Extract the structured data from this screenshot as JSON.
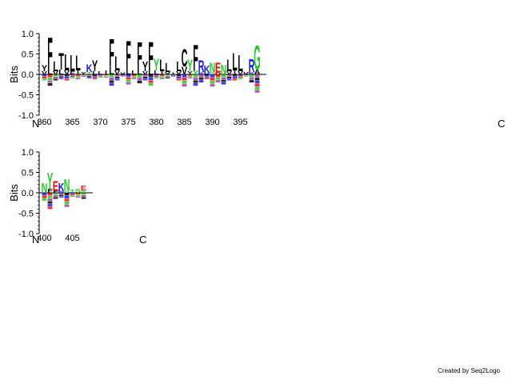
{
  "chart_data": {
    "type": "sequence-logo",
    "colors": {
      "hydrophobic": "#000000",
      "polar": "#22cc22",
      "basic": "#1a1aff",
      "acidic": "#ff0000",
      "neutral": "#a040a0"
    },
    "panels": [
      {
        "ylabel": "Bits",
        "ylim": [
          -1.0,
          1.0
        ],
        "yticks": [
          "-1.0",
          "-0.5",
          "0.0",
          "0.5",
          "1.0"
        ],
        "start_label": "N",
        "end_label": "C",
        "x_ticks": [
          360,
          365,
          370,
          375,
          380,
          385,
          390,
          395
        ],
        "positions": [
          {
            "pos": 360,
            "letters": [
              [
                "Y",
                0.15,
                "hydrophobic"
              ],
              [
                "V",
                0.08,
                "hydrophobic"
              ]
            ],
            "neg": 0.15
          },
          {
            "pos": 361,
            "letters": [
              [
                "F",
                0.78,
                "hydrophobic"
              ],
              [
                "L",
                0.15,
                "hydrophobic"
              ]
            ],
            "neg": 0.28
          },
          {
            "pos": 362,
            "letters": [
              [
                "L",
                0.25,
                "hydrophobic"
              ],
              [
                "V",
                0.08,
                "hydrophobic"
              ]
            ],
            "neg": 0.15
          },
          {
            "pos": 363,
            "letters": [
              [
                "T",
                0.42,
                "hydrophobic"
              ],
              [
                "L",
                0.12,
                "hydrophobic"
              ]
            ],
            "neg": 0.12
          },
          {
            "pos": 364,
            "letters": [
              [
                "L",
                0.4,
                "hydrophobic"
              ],
              [
                "V",
                0.1,
                "hydrophobic"
              ]
            ],
            "neg": 0.15
          },
          {
            "pos": 365,
            "letters": [
              [
                "L",
                0.4,
                "hydrophobic"
              ],
              [
                "F",
                0.08,
                "hydrophobic"
              ]
            ],
            "neg": 0.1
          },
          {
            "pos": 366,
            "letters": [
              [
                "L",
                0.38,
                "hydrophobic"
              ],
              [
                "I",
                0.1,
                "hydrophobic"
              ]
            ],
            "neg": 0.12
          },
          {
            "pos": 367,
            "letters": [
              [
                "Y",
                0.06,
                "hydrophobic"
              ]
            ],
            "neg": 0.05
          },
          {
            "pos": 368,
            "letters": [
              [
                "K",
                0.2,
                "basic"
              ],
              [
                "T",
                0.06,
                "polar"
              ]
            ],
            "neg": 0.1
          },
          {
            "pos": 369,
            "letters": [
              [
                "Y",
                0.28,
                "hydrophobic"
              ],
              [
                "L",
                0.08,
                "hydrophobic"
              ]
            ],
            "neg": 0.12
          },
          {
            "pos": 370,
            "letters": [
              [
                "L",
                0.08,
                "hydrophobic"
              ]
            ],
            "neg": 0.08
          },
          {
            "pos": 371,
            "letters": [
              [
                "I",
                0.1,
                "hydrophobic"
              ]
            ],
            "neg": 0.08
          },
          {
            "pos": 372,
            "letters": [
              [
                "F",
                0.7,
                "hydrophobic"
              ],
              [
                "L",
                0.2,
                "hydrophobic"
              ]
            ],
            "neg": 0.28
          },
          {
            "pos": 373,
            "letters": [
              [
                "L",
                0.35,
                "hydrophobic"
              ],
              [
                "V",
                0.1,
                "hydrophobic"
              ]
            ],
            "neg": 0.15
          },
          {
            "pos": 374,
            "letters": [
              [
                "V",
                0.05,
                "hydrophobic"
              ]
            ],
            "neg": 0.05
          },
          {
            "pos": 375,
            "letters": [
              [
                "F",
                0.7,
                "hydrophobic"
              ],
              [
                "L",
                0.15,
                "hydrophobic"
              ]
            ],
            "neg": 0.25
          },
          {
            "pos": 376,
            "letters": [
              [
                "L",
                0.1,
                "hydrophobic"
              ]
            ],
            "neg": 0.12
          },
          {
            "pos": 377,
            "letters": [
              [
                "F",
                0.7,
                "hydrophobic"
              ],
              [
                "L",
                0.12,
                "hydrophobic"
              ]
            ],
            "neg": 0.22
          },
          {
            "pos": 378,
            "letters": [
              [
                "Y",
                0.25,
                "hydrophobic"
              ],
              [
                "V",
                0.08,
                "hydrophobic"
              ]
            ],
            "neg": 0.15
          },
          {
            "pos": 379,
            "letters": [
              [
                "F",
                0.72,
                "hydrophobic"
              ],
              [
                "L",
                0.1,
                "hydrophobic"
              ]
            ],
            "neg": 0.28
          },
          {
            "pos": 380,
            "letters": [
              [
                "Y",
                0.3,
                "polar"
              ],
              [
                "L",
                0.1,
                "hydrophobic"
              ]
            ],
            "neg": 0.1
          },
          {
            "pos": 381,
            "letters": [
              [
                "L",
                0.3,
                "hydrophobic"
              ],
              [
                "I",
                0.08,
                "hydrophobic"
              ]
            ],
            "neg": 0.12
          },
          {
            "pos": 382,
            "letters": [
              [
                "L",
                0.22,
                "hydrophobic"
              ],
              [
                "V",
                0.06,
                "hydrophobic"
              ]
            ],
            "neg": 0.1
          },
          {
            "pos": 383,
            "letters": [
              [
                "I",
                0.05,
                "hydrophobic"
              ]
            ],
            "neg": 0.06
          },
          {
            "pos": 384,
            "letters": [
              [
                "L",
                0.25,
                "hydrophobic"
              ],
              [
                "V",
                0.08,
                "hydrophobic"
              ]
            ],
            "neg": 0.15
          },
          {
            "pos": 385,
            "letters": [
              [
                "C",
                0.45,
                "hydrophobic"
              ],
              [
                "V",
                0.2,
                "hydrophobic"
              ]
            ],
            "neg": 0.3
          },
          {
            "pos": 386,
            "letters": [
              [
                "Y",
                0.3,
                "polar"
              ],
              [
                "Y",
                0.08,
                "hydrophobic"
              ]
            ],
            "neg": 0.1
          },
          {
            "pos": 387,
            "letters": [
              [
                "F",
                0.65,
                "hydrophobic"
              ],
              [
                "Y",
                0.1,
                "polar"
              ]
            ],
            "neg": 0.28
          },
          {
            "pos": 388,
            "letters": [
              [
                "R",
                0.3,
                "basic"
              ],
              [
                "K",
                0.06,
                "basic"
              ]
            ],
            "neg": 0.2
          },
          {
            "pos": 389,
            "letters": [
              [
                "K",
                0.18,
                "basic"
              ],
              [
                "R",
                0.04,
                "basic"
              ]
            ],
            "neg": 0.12
          },
          {
            "pos": 390,
            "letters": [
              [
                "N",
                0.25,
                "polar"
              ],
              [
                "S",
                0.05,
                "polar"
              ]
            ],
            "neg": 0.3
          },
          {
            "pos": 391,
            "letters": [
              [
                "E",
                0.25,
                "acidic"
              ],
              [
                "D",
                0.05,
                "acidic"
              ]
            ],
            "neg": 0.2
          },
          {
            "pos": 392,
            "letters": [
              [
                "N",
                0.25,
                "polar"
              ]
            ],
            "neg": 0.25
          },
          {
            "pos": 393,
            "letters": [
              [
                "L",
                0.3,
                "hydrophobic"
              ],
              [
                "V",
                0.08,
                "hydrophobic"
              ]
            ],
            "neg": 0.15
          },
          {
            "pos": 394,
            "letters": [
              [
                "L",
                0.45,
                "hydrophobic"
              ],
              [
                "I",
                0.1,
                "hydrophobic"
              ]
            ],
            "neg": 0.15
          },
          {
            "pos": 395,
            "letters": [
              [
                "L",
                0.4,
                "hydrophobic"
              ],
              [
                "V",
                0.08,
                "hydrophobic"
              ]
            ],
            "neg": 0.12
          },
          {
            "pos": 396,
            "letters": [
              [
                "V",
                0.06,
                "hydrophobic"
              ]
            ],
            "neg": 0.05
          },
          {
            "pos": 397,
            "letters": [
              [
                "R",
                0.32,
                "basic"
              ],
              [
                "K",
                0.06,
                "basic"
              ]
            ],
            "neg": 0.2
          },
          {
            "pos": 398,
            "letters": [
              [
                "G",
                0.62,
                "polar"
              ],
              [
                "A",
                0.12,
                "hydrophobic"
              ]
            ],
            "neg": 0.45
          }
        ]
      },
      {
        "ylabel": "Bits",
        "ylim": [
          -1.0,
          1.0
        ],
        "yticks": [
          "-1.0",
          "-0.5",
          "0.0",
          "0.5",
          "1.0"
        ],
        "start_label": "N",
        "end_label": "C",
        "x_ticks": [
          400,
          405
        ],
        "positions": [
          {
            "pos": 400,
            "letters": [
              [
                "N",
                0.25,
                "polar"
              ]
            ],
            "neg": 0.2
          },
          {
            "pos": 401,
            "letters": [
              [
                "Y",
                0.4,
                "polar"
              ],
              [
                "F",
                0.1,
                "hydrophobic"
              ]
            ],
            "neg": 0.4
          },
          {
            "pos": 402,
            "letters": [
              [
                "E",
                0.25,
                "acidic"
              ],
              [
                "F",
                0.05,
                "hydrophobic"
              ]
            ],
            "neg": 0.15
          },
          {
            "pos": 403,
            "letters": [
              [
                "K",
                0.2,
                "basic"
              ],
              [
                "R",
                0.05,
                "basic"
              ]
            ],
            "neg": 0.12
          },
          {
            "pos": 404,
            "letters": [
              [
                "N",
                0.3,
                "polar"
              ],
              [
                "S",
                0.05,
                "polar"
              ]
            ],
            "neg": 0.35
          },
          {
            "pos": 405,
            "letters": [
              [
                "T",
                0.08,
                "polar"
              ]
            ],
            "neg": 0.1
          },
          {
            "pos": 406,
            "letters": [
              [
                "S",
                0.1,
                "polar"
              ]
            ],
            "neg": 0.12
          },
          {
            "pos": 407,
            "letters": [
              [
                "E",
                0.12,
                "acidic"
              ],
              [
                "Y",
                0.06,
                "polar"
              ]
            ],
            "neg": 0.15
          }
        ]
      }
    ]
  },
  "footer": {
    "credit": "Created by Seq2Logo"
  }
}
